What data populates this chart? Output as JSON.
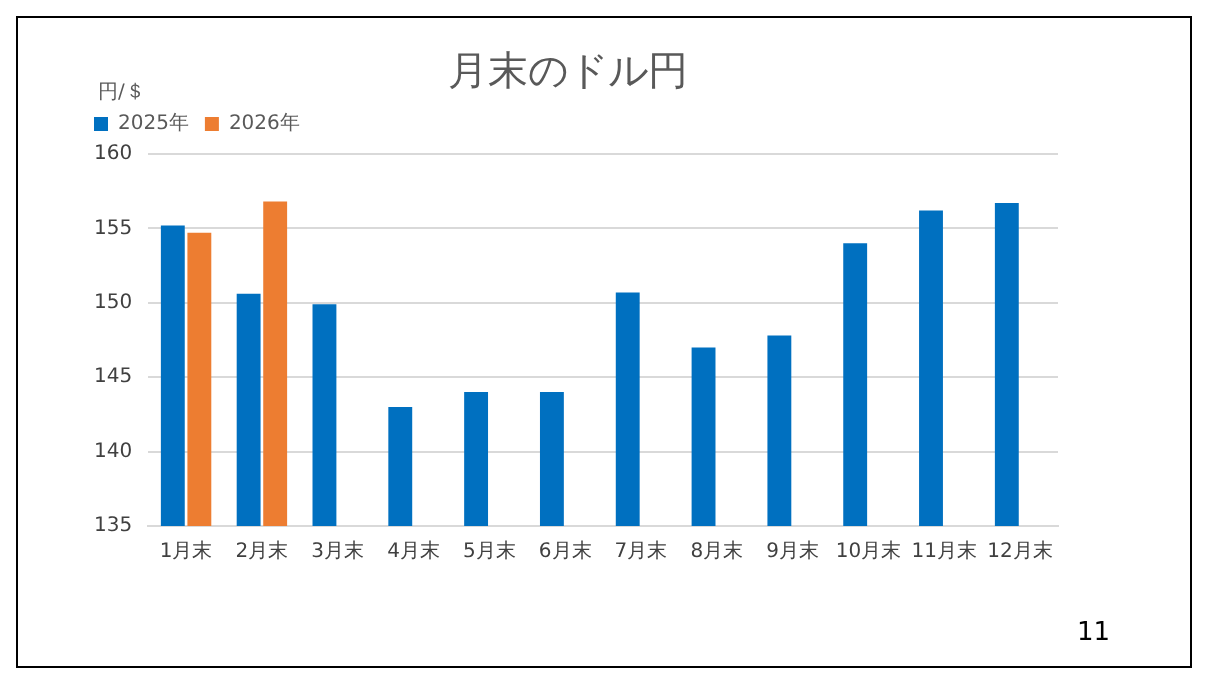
{
  "chart_data": {
    "type": "bar",
    "title": "月末のドル円",
    "ylabel": "円/＄",
    "categories": [
      "1月末",
      "2月末",
      "3月末",
      "4月末",
      "5月末",
      "6月末",
      "7月末",
      "8月末",
      "9月末",
      "10月末",
      "11月末",
      "12月末"
    ],
    "series": [
      {
        "name": "2025年",
        "color": "#0070c0",
        "values": [
          155.2,
          150.6,
          149.9,
          143.0,
          144.0,
          144.0,
          150.7,
          147.0,
          147.8,
          154.0,
          156.2,
          156.7
        ]
      },
      {
        "name": "2026年",
        "color": "#ed7d31",
        "values": [
          154.7,
          156.8,
          null,
          null,
          null,
          null,
          null,
          null,
          null,
          null,
          null,
          null
        ]
      }
    ],
    "ylim": [
      135,
      160
    ],
    "yticks": [
      135,
      140,
      145,
      150,
      155,
      160
    ],
    "grid": "y",
    "legend": "top left",
    "annotations": [
      "11"
    ]
  }
}
